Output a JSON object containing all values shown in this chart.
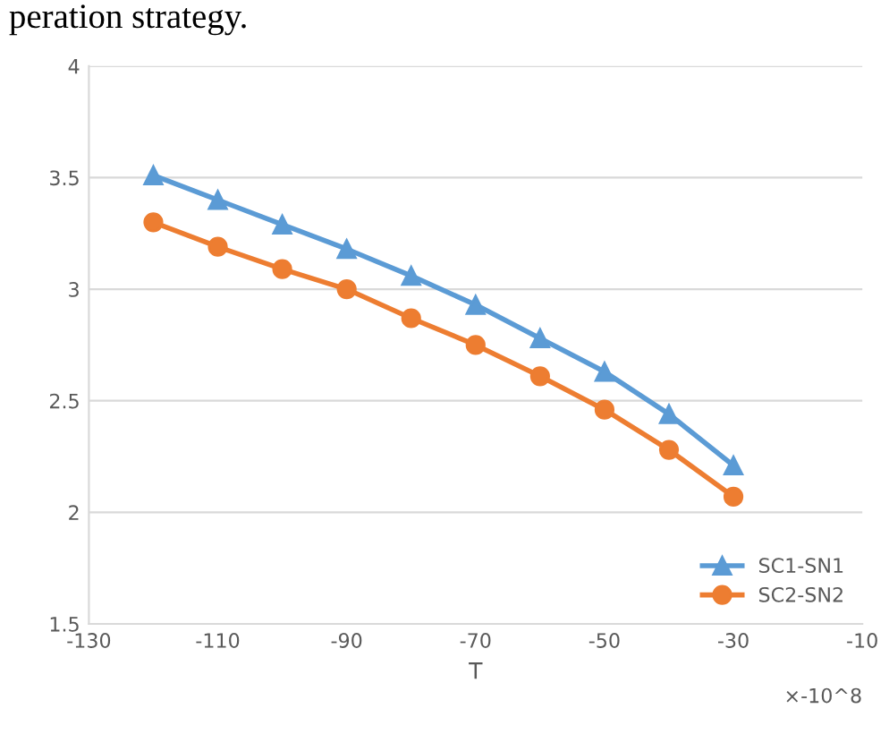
{
  "chart_data": {
    "type": "line",
    "xlabel": "T",
    "annotations": [
      "peration strategy.",
      "×-10^8"
    ],
    "x": [
      -120,
      -110,
      -100,
      -90,
      -80,
      -70,
      -60,
      -50,
      -40,
      -30
    ],
    "series": [
      {
        "name": "SC1-SN1",
        "color": "#5b9bd5",
        "marker": "triangle",
        "values": [
          3.51,
          3.4,
          3.29,
          3.18,
          3.06,
          2.93,
          2.78,
          2.63,
          2.44,
          2.21
        ]
      },
      {
        "name": "SC2-SN2",
        "color": "#ed7d31",
        "marker": "circle",
        "values": [
          3.3,
          3.19,
          3.09,
          3.0,
          2.87,
          2.75,
          2.61,
          2.46,
          2.28,
          2.07
        ]
      }
    ],
    "xlim": [
      -130,
      -10
    ],
    "xticks": [
      -130,
      -110,
      -90,
      -70,
      -50,
      -30,
      -10
    ],
    "ylim": [
      1.5,
      4
    ],
    "yticks": [
      1.5,
      2,
      2.5,
      3,
      3.5,
      4
    ],
    "grid": "y",
    "legend": "bottom right"
  }
}
